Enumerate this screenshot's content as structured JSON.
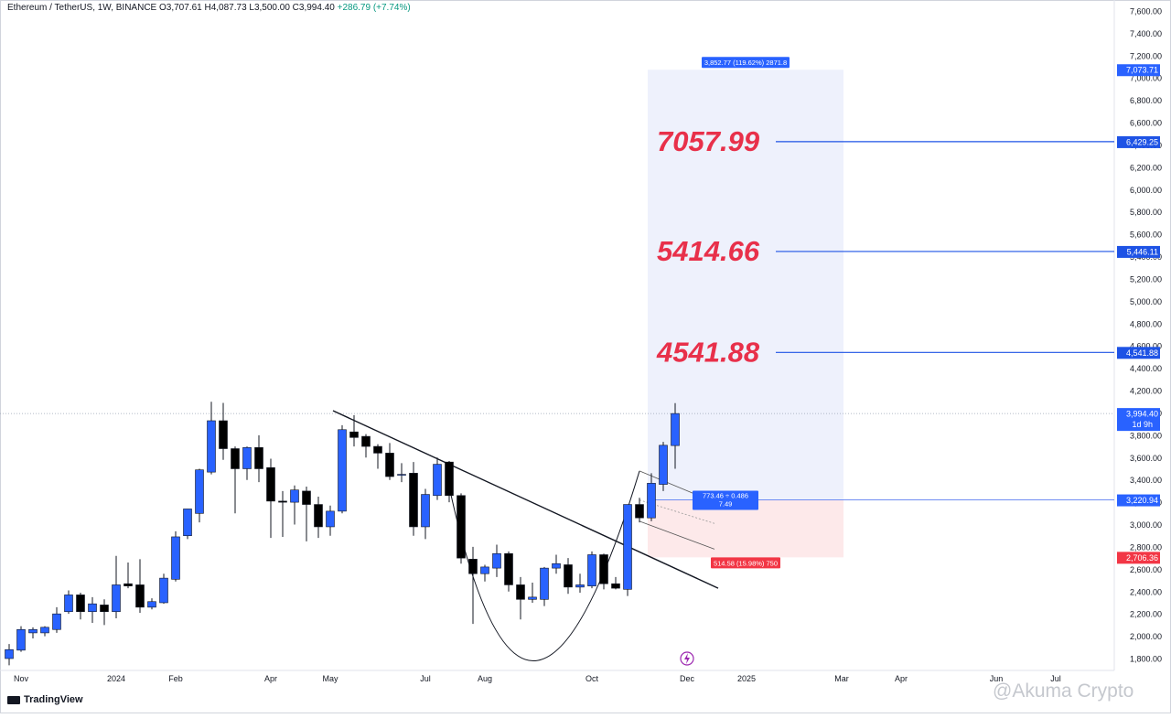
{
  "header": {
    "symbol": "Ethereum / TetherUS, 1W, BINANCE",
    "ohlc": "O3,707.61  H4,087.73  L3,500.00  C3,994.40",
    "change": "+286.79 (+7.74%)"
  },
  "footer": {
    "brand": "TradingView",
    "watermark": "@Akuma Crypto"
  },
  "colors": {
    "up": "#2962ff",
    "down": "#000000",
    "target_text": "#e8304a",
    "target_line": "#1e53e5",
    "profit_zone": "#eef1fc",
    "loss_zone": "#fde9ea",
    "stop_label": "#f23645",
    "entry_label": "#2962ff"
  },
  "chart_data": {
    "type": "candlestick",
    "symbol": "Ethereum / TetherUS",
    "interval": "1W",
    "exchange": "BINANCE",
    "y_axis_ticks": [
      1800,
      2000,
      2200,
      2400,
      2600,
      2800,
      3000,
      3200,
      3400,
      3600,
      3800,
      4000,
      4200,
      4400,
      4600,
      4800,
      5000,
      5200,
      5400,
      5600,
      5800,
      6000,
      6200,
      6400,
      6600,
      6800,
      7000,
      7200,
      7400,
      7600
    ],
    "y_axis_labels": [
      "1,800.00",
      "2,000.00",
      "2,200.00",
      "2,400.00",
      "2,600.00",
      "2,800.00",
      "3,000.00",
      "3,200.00",
      "3,400.00",
      "3,600.00",
      "3,800.00",
      "4,000.00",
      "4,200.00",
      "4,400.00",
      "4,600.00",
      "4,800.00",
      "5,000.00",
      "5,200.00",
      "5,400.00",
      "5,600.00",
      "5,800.00",
      "6,000.00",
      "6,200.00",
      "6,400.00",
      "6,600.00",
      "6,800.00",
      "7,000.00",
      "7,200.00",
      "7,400.00",
      "7,600.00"
    ],
    "ylim": [
      1720,
      7650
    ],
    "x_axis_labels": [
      {
        "label": "Nov",
        "index": 1
      },
      {
        "label": "2024",
        "index": 9
      },
      {
        "label": "Feb",
        "index": 14
      },
      {
        "label": "Apr",
        "index": 22
      },
      {
        "label": "May",
        "index": 27
      },
      {
        "label": "Jul",
        "index": 35
      },
      {
        "label": "Aug",
        "index": 40
      },
      {
        "label": "Oct",
        "index": 49
      },
      {
        "label": "Dec",
        "index": 57
      },
      {
        "label": "2025",
        "index": 62
      },
      {
        "label": "Mar",
        "index": 70
      },
      {
        "label": "Apr",
        "index": 75
      },
      {
        "label": "Jun",
        "index": 83
      },
      {
        "label": "Jul",
        "index": 88
      }
    ],
    "candles": [
      {
        "o": 1800,
        "h": 1930,
        "l": 1740,
        "c": 1880
      },
      {
        "o": 1875,
        "h": 2090,
        "l": 1860,
        "c": 2060
      },
      {
        "o": 2030,
        "h": 2080,
        "l": 1980,
        "c": 2060
      },
      {
        "o": 2030,
        "h": 2090,
        "l": 2000,
        "c": 2080
      },
      {
        "o": 2060,
        "h": 2260,
        "l": 2030,
        "c": 2200
      },
      {
        "o": 2220,
        "h": 2410,
        "l": 2200,
        "c": 2370
      },
      {
        "o": 2370,
        "h": 2390,
        "l": 2150,
        "c": 2220
      },
      {
        "o": 2220,
        "h": 2350,
        "l": 2120,
        "c": 2290
      },
      {
        "o": 2280,
        "h": 2330,
        "l": 2100,
        "c": 2220
      },
      {
        "o": 2220,
        "h": 2720,
        "l": 2160,
        "c": 2460
      },
      {
        "o": 2470,
        "h": 2660,
        "l": 2430,
        "c": 2450
      },
      {
        "o": 2460,
        "h": 2690,
        "l": 2210,
        "c": 2260
      },
      {
        "o": 2260,
        "h": 2340,
        "l": 2240,
        "c": 2310
      },
      {
        "o": 2300,
        "h": 2560,
        "l": 2290,
        "c": 2520
      },
      {
        "o": 2510,
        "h": 2940,
        "l": 2490,
        "c": 2890
      },
      {
        "o": 2900,
        "h": 3140,
        "l": 2870,
        "c": 3140
      },
      {
        "o": 3100,
        "h": 3500,
        "l": 3020,
        "c": 3490
      },
      {
        "o": 3470,
        "h": 4100,
        "l": 3450,
        "c": 3930
      },
      {
        "o": 3930,
        "h": 4090,
        "l": 3580,
        "c": 3680
      },
      {
        "o": 3680,
        "h": 3700,
        "l": 3100,
        "c": 3500
      },
      {
        "o": 3500,
        "h": 3700,
        "l": 3400,
        "c": 3690
      },
      {
        "o": 3690,
        "h": 3800,
        "l": 3380,
        "c": 3500
      },
      {
        "o": 3510,
        "h": 3590,
        "l": 2880,
        "c": 3210
      },
      {
        "o": 3210,
        "h": 3300,
        "l": 2890,
        "c": 3200
      },
      {
        "o": 3200,
        "h": 3350,
        "l": 3000,
        "c": 3310
      },
      {
        "o": 3300,
        "h": 3340,
        "l": 2850,
        "c": 3180
      },
      {
        "o": 3180,
        "h": 3250,
        "l": 2880,
        "c": 2980
      },
      {
        "o": 2980,
        "h": 3170,
        "l": 2900,
        "c": 3120
      },
      {
        "o": 3120,
        "h": 3890,
        "l": 3100,
        "c": 3850
      },
      {
        "o": 3830,
        "h": 3980,
        "l": 3700,
        "c": 3780
      },
      {
        "o": 3790,
        "h": 3810,
        "l": 3600,
        "c": 3700
      },
      {
        "o": 3700,
        "h": 3720,
        "l": 3500,
        "c": 3640
      },
      {
        "o": 3640,
        "h": 3730,
        "l": 3400,
        "c": 3430
      },
      {
        "o": 3450,
        "h": 3550,
        "l": 3380,
        "c": 3450
      },
      {
        "o": 3460,
        "h": 3560,
        "l": 2900,
        "c": 2980
      },
      {
        "o": 2980,
        "h": 3320,
        "l": 2870,
        "c": 3270
      },
      {
        "o": 3260,
        "h": 3600,
        "l": 3220,
        "c": 3540
      },
      {
        "o": 3560,
        "h": 3570,
        "l": 3200,
        "c": 3260
      },
      {
        "o": 3260,
        "h": 3280,
        "l": 2650,
        "c": 2700
      },
      {
        "o": 2690,
        "h": 2800,
        "l": 2110,
        "c": 2560
      },
      {
        "o": 2560,
        "h": 2640,
        "l": 2490,
        "c": 2620
      },
      {
        "o": 2610,
        "h": 2820,
        "l": 2530,
        "c": 2740
      },
      {
        "o": 2740,
        "h": 2760,
        "l": 2400,
        "c": 2460
      },
      {
        "o": 2460,
        "h": 2530,
        "l": 2150,
        "c": 2330
      },
      {
        "o": 2330,
        "h": 2480,
        "l": 2300,
        "c": 2350
      },
      {
        "o": 2330,
        "h": 2620,
        "l": 2270,
        "c": 2610
      },
      {
        "o": 2610,
        "h": 2730,
        "l": 2560,
        "c": 2650
      },
      {
        "o": 2640,
        "h": 2700,
        "l": 2380,
        "c": 2440
      },
      {
        "o": 2440,
        "h": 2560,
        "l": 2390,
        "c": 2460
      },
      {
        "o": 2450,
        "h": 2760,
        "l": 2430,
        "c": 2730
      },
      {
        "o": 2730,
        "h": 2740,
        "l": 2420,
        "c": 2470
      },
      {
        "o": 2470,
        "h": 2530,
        "l": 2420,
        "c": 2430
      },
      {
        "o": 2420,
        "h": 3180,
        "l": 2360,
        "c": 3180
      },
      {
        "o": 3180,
        "h": 3240,
        "l": 3020,
        "c": 3060
      },
      {
        "o": 3060,
        "h": 3460,
        "l": 3030,
        "c": 3370
      },
      {
        "o": 3360,
        "h": 3740,
        "l": 3300,
        "c": 3710
      },
      {
        "o": 3707.61,
        "h": 4087.73,
        "l": 3500,
        "c": 3994.4
      }
    ],
    "current_price_label": "3,994.40",
    "countdown_label": "1d 9h",
    "position": {
      "entry_label": "3,220.94",
      "target_label": "7,073.71",
      "stop_label": "2,706.36",
      "entry": 3220.94,
      "target": 7073.71,
      "stop": 2706.36,
      "profit_text": "3,852.77 (119.62%) 2871.8",
      "ratio_text": [
        "773.46 ÷ 0.486",
        "7.49"
      ],
      "loss_text": "514.58 (15.98%) 750"
    },
    "targets": [
      {
        "annotation": "7057.99",
        "level": 6429.25,
        "label": "6,429.25"
      },
      {
        "annotation": "5414.66",
        "level": 5446.11,
        "label": "5,446.11"
      },
      {
        "annotation": "4541.88",
        "level": 4541.88,
        "label": "4,541.88"
      }
    ],
    "trendline": [
      {
        "index": 28,
        "price": 4020
      },
      {
        "index": 59,
        "price": 2430
      }
    ],
    "cup_curve": [
      {
        "index": 37,
        "price": 3340
      },
      {
        "index": 43.5,
        "price": 1780
      },
      {
        "index": 53,
        "price": 3480
      }
    ]
  }
}
